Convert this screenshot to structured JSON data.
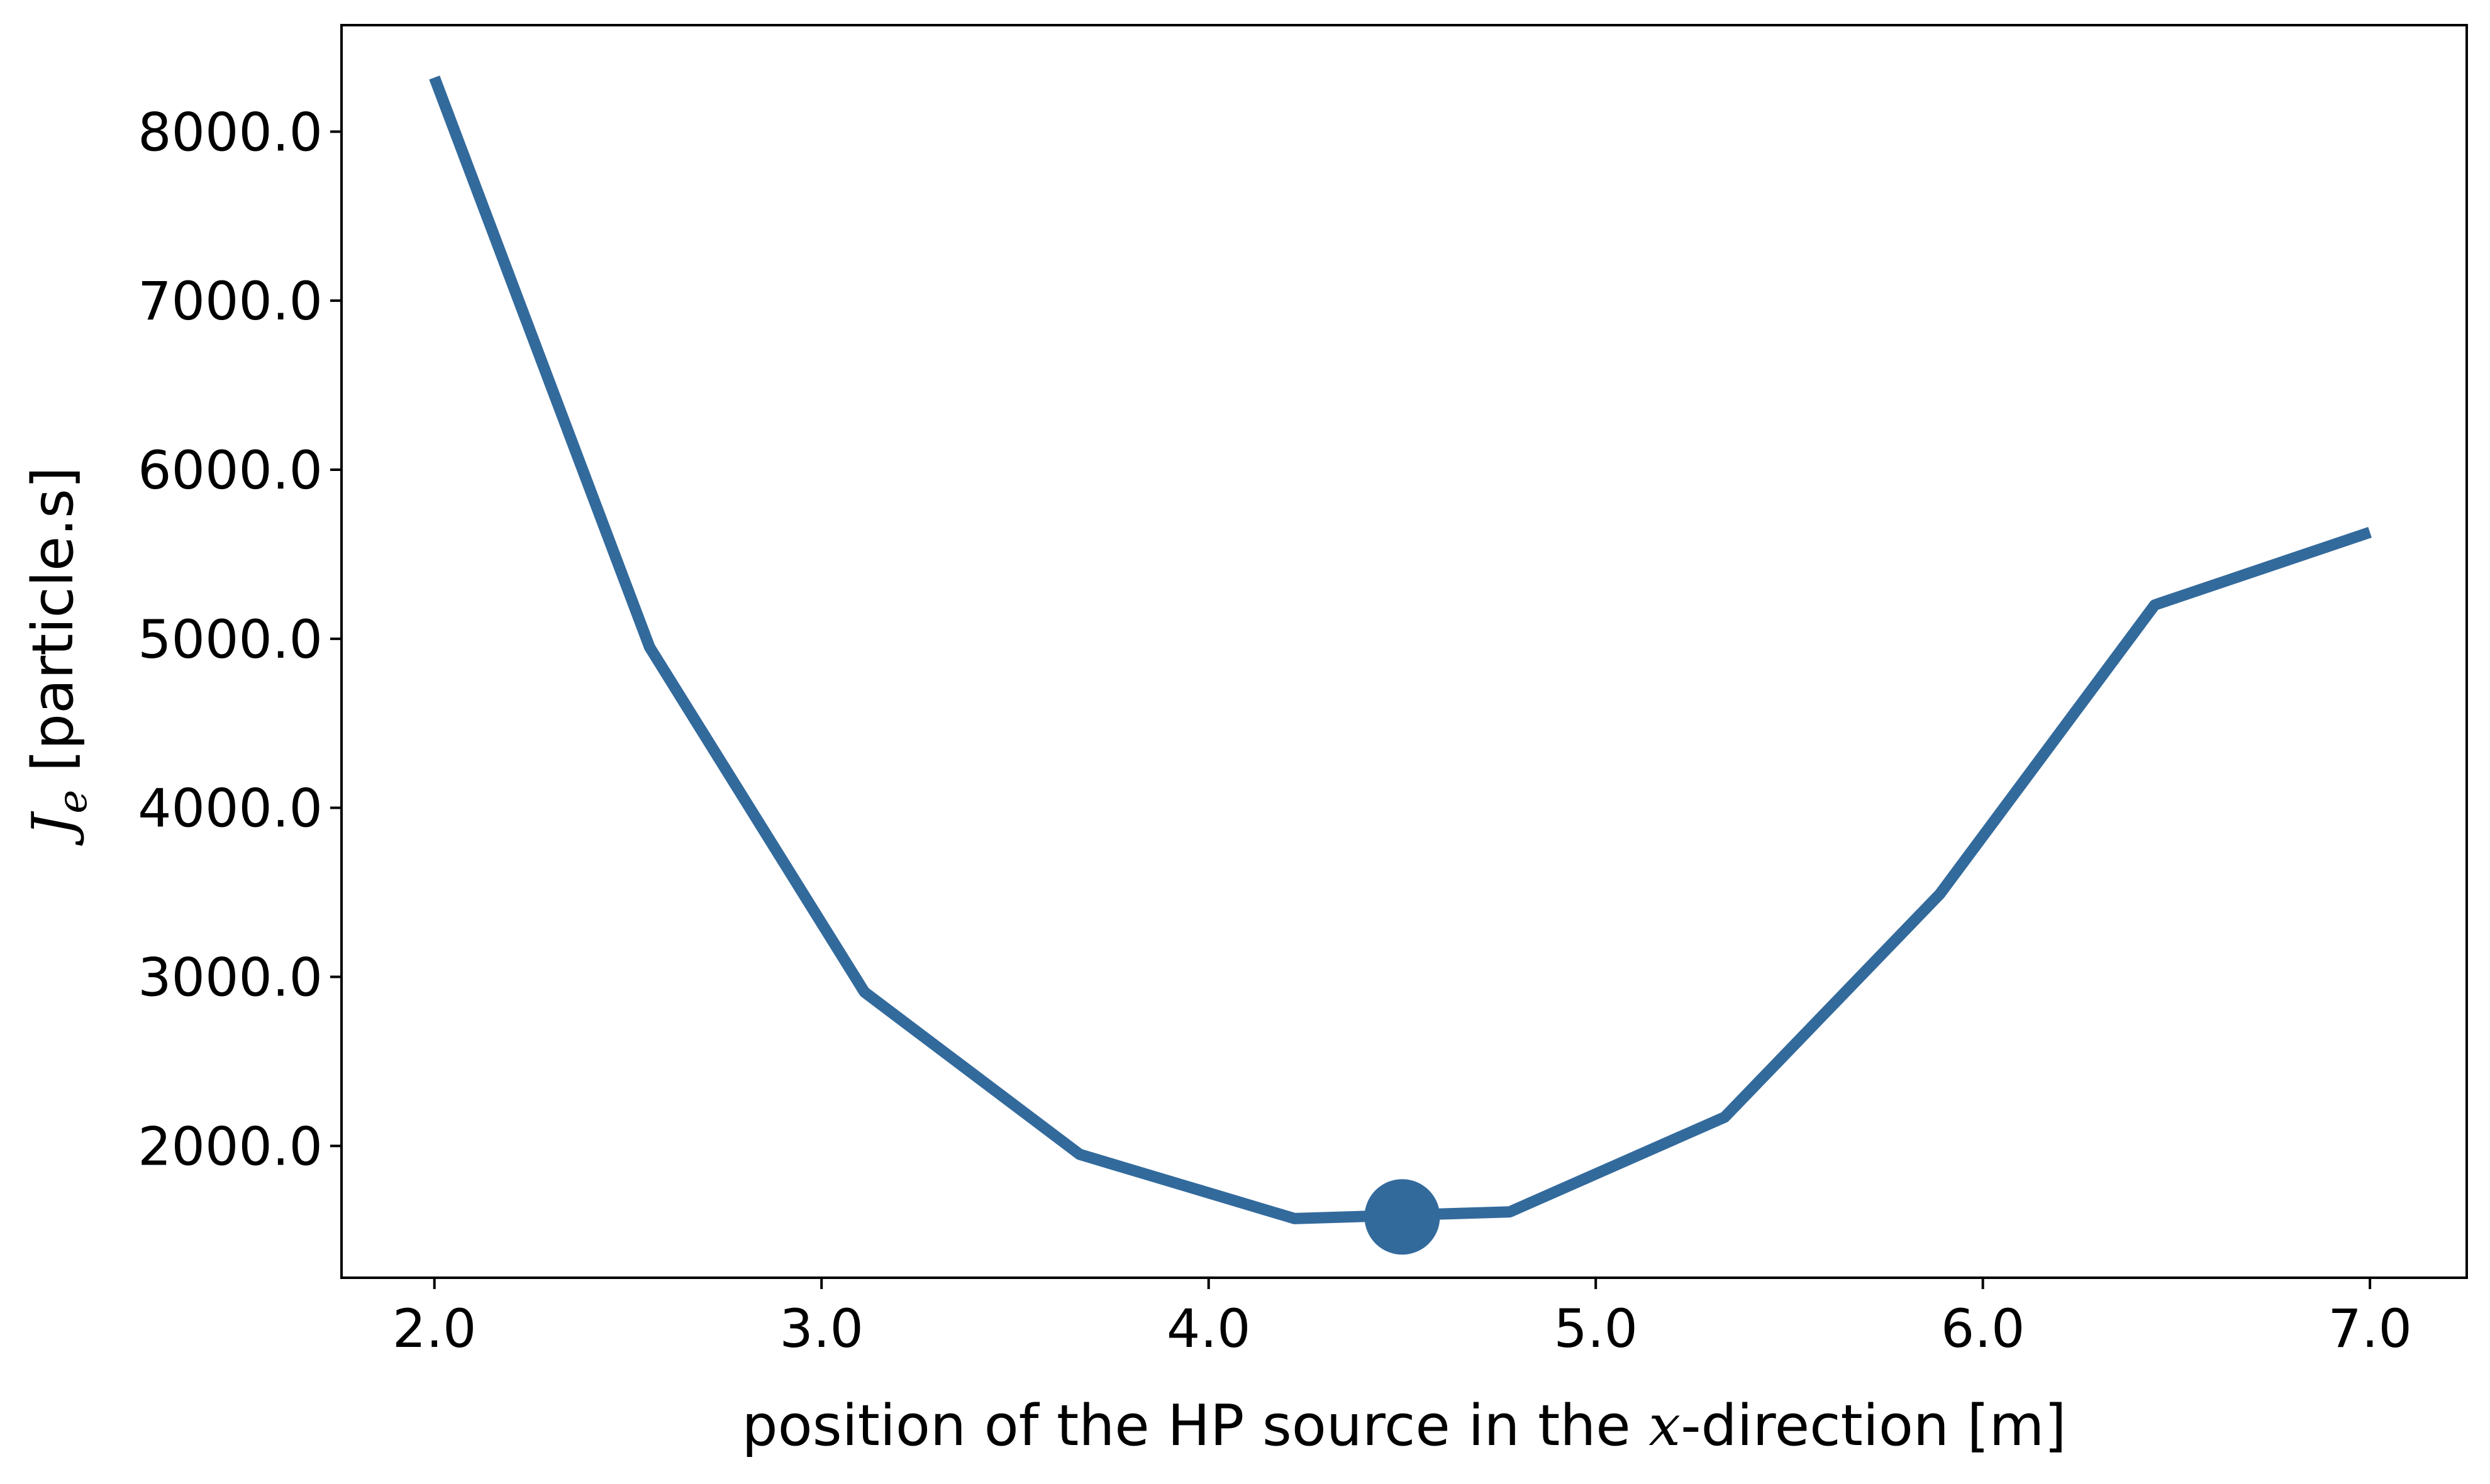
{
  "chart_data": {
    "type": "line",
    "title": "",
    "xlabel": {
      "prefix": "position of the HP source in the ",
      "math": "x",
      "suffix": "-direction [m]"
    },
    "ylabel": {
      "math": "J",
      "math_sub": "e",
      "suffix": " [particle.s]"
    },
    "xlim": [
      1.76,
      7.25
    ],
    "ylim": [
      1220,
      8630
    ],
    "xticks": [
      2.0,
      3.0,
      4.0,
      5.0,
      6.0,
      7.0
    ],
    "xtick_labels": [
      "2.0",
      "3.0",
      "4.0",
      "5.0",
      "6.0",
      "7.0"
    ],
    "yticks": [
      2000,
      3000,
      4000,
      5000,
      6000,
      7000,
      8000
    ],
    "ytick_labels": [
      "2000.0",
      "3000.0",
      "4000.0",
      "5000.0",
      "6000.0",
      "7000.0",
      "8000.0"
    ],
    "grid": false,
    "series": [
      {
        "color": "#336a9c",
        "x": [
          2.0,
          2.556,
          3.111,
          3.667,
          4.222,
          4.778,
          5.333,
          5.889,
          6.444,
          7.0
        ],
        "y": [
          8320,
          4950,
          2910,
          1950,
          1570,
          1610,
          2170,
          3490,
          5200,
          5630
        ]
      }
    ],
    "highlight_point": {
      "x": 4.5,
      "y": 1580,
      "color": "#336a9c"
    }
  }
}
